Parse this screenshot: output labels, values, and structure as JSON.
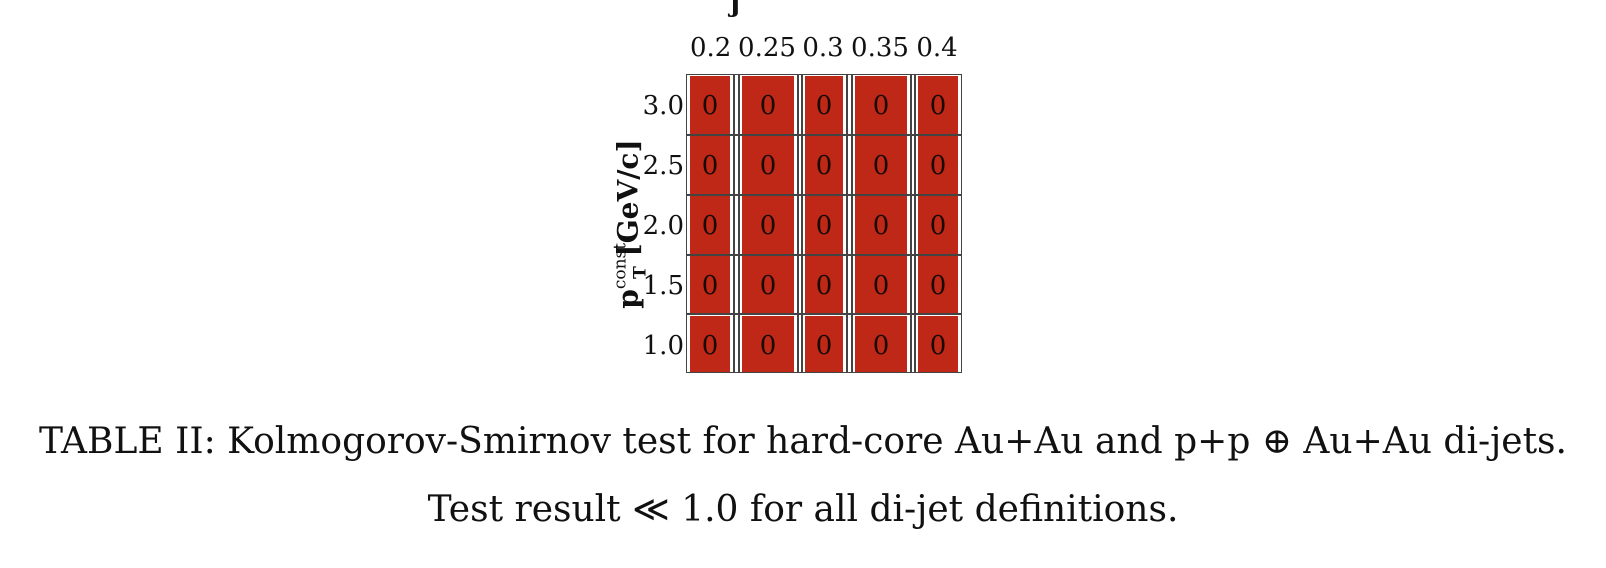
{
  "clipped_title": "j",
  "table": {
    "column_headers": [
      "0.2",
      "0.25",
      "0.3",
      "0.35",
      "0.4"
    ],
    "row_headers": [
      "3.0",
      "2.5",
      "2.0",
      "1.5",
      "1.0"
    ],
    "y_axis_label": {
      "main": "p",
      "superscript": "const",
      "subscript": "T",
      "unit": "[GeV/c]"
    },
    "cells": [
      [
        "0",
        "0",
        "0",
        "0",
        "0"
      ],
      [
        "0",
        "0",
        "0",
        "0",
        "0"
      ],
      [
        "0",
        "0",
        "0",
        "0",
        "0"
      ],
      [
        "0",
        "0",
        "0",
        "0",
        "0"
      ],
      [
        "0",
        "0",
        "0",
        "0",
        "0"
      ]
    ],
    "cell_color": "#bf2817"
  },
  "caption": {
    "line1": "TABLE II:  Kolmogorov-Smirnov test for hard-core Au+Au and p+p ⊕ Au+Au di-jets.",
    "line2": "Test result ≪ 1.0 for all di-jet definitions."
  }
}
